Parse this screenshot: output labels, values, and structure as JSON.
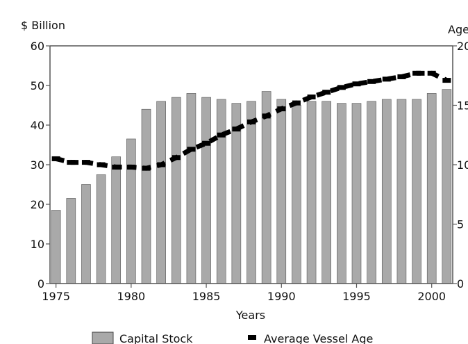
{
  "chart_data": {
    "type": "bar",
    "y_label_left": "$ Billion",
    "y_label_right": "Age",
    "xlabel": "Years",
    "x": [
      1975,
      1976,
      1977,
      1978,
      1979,
      1980,
      1981,
      1982,
      1983,
      1984,
      1985,
      1986,
      1987,
      1988,
      1989,
      1990,
      1991,
      1992,
      1993,
      1994,
      1995,
      1996,
      1997,
      1998,
      1999,
      2000,
      2001
    ],
    "x_ticks": [
      1975,
      1980,
      1985,
      1990,
      1995,
      2000
    ],
    "x_tick_labels": [
      "1975",
      "1980",
      "1985",
      "1990",
      "1995",
      "2000"
    ],
    "y_ticks_left": [
      0,
      10,
      20,
      30,
      40,
      50,
      60
    ],
    "y_tick_labels_left": [
      "0",
      "10",
      "20",
      "30",
      "40",
      "50",
      "60"
    ],
    "y_ticks_right": [
      0,
      5,
      10,
      15,
      20
    ],
    "y_tick_labels_right": [
      "0",
      "5",
      "10",
      "15",
      "20"
    ],
    "ylim_left": [
      0,
      60
    ],
    "ylim_right": [
      0,
      20
    ],
    "series": [
      {
        "name": "Capital Stock",
        "axis": "left",
        "type": "bar",
        "color": "#a9a9a9",
        "values": [
          18.5,
          21.5,
          25,
          27.5,
          32,
          36.5,
          44,
          46,
          47,
          48,
          47,
          46.5,
          45.5,
          46,
          48.5,
          46.5,
          45,
          46,
          46,
          45.5,
          45.5,
          46,
          46.5,
          46.5,
          46.5,
          48,
          49
        ]
      },
      {
        "name": "Average Vessel Age",
        "axis": "right",
        "type": "line",
        "style": "dashed",
        "color": "#000000",
        "values": [
          10.5,
          10.2,
          10.2,
          10,
          9.8,
          9.8,
          9.7,
          10,
          10.6,
          11.3,
          11.8,
          12.5,
          13,
          13.6,
          14.1,
          14.7,
          15.2,
          15.7,
          16.1,
          16.5,
          16.8,
          17,
          17.2,
          17.4,
          17.7,
          17.7,
          17.1
        ]
      }
    ],
    "legend": [
      "Capital Stock",
      "Average Vessel Age"
    ],
    "legend_position": "bottom",
    "grid": false
  }
}
